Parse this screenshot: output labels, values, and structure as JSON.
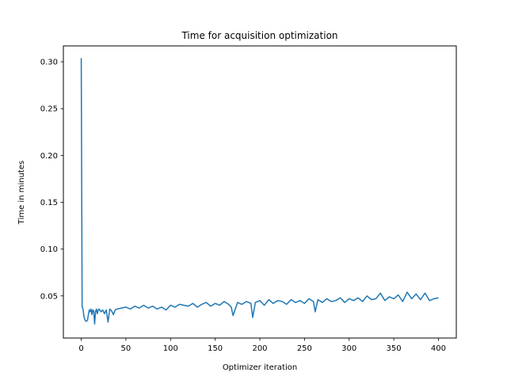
{
  "chart_data": {
    "type": "line",
    "title": "Time for acquisition optimization",
    "xlabel": "Optimizer iteration",
    "ylabel": "Time in minutes",
    "xlim": [
      -20,
      420
    ],
    "ylim": [
      0.005,
      0.317
    ],
    "xticks": [
      0,
      50,
      100,
      150,
      200,
      250,
      300,
      350,
      400
    ],
    "yticks": [
      0.05,
      0.1,
      0.15,
      0.2,
      0.25,
      0.3
    ],
    "ytick_labels": [
      "0.05",
      "0.10",
      "0.15",
      "0.20",
      "0.25",
      "0.30"
    ],
    "grid": false,
    "series": [
      {
        "color": "#1f77b4",
        "x": [
          0,
          1,
          2,
          3,
          4,
          5,
          6,
          7,
          8,
          9,
          10,
          11,
          12,
          13,
          14,
          15,
          16,
          17,
          18,
          19,
          20,
          22,
          24,
          26,
          28,
          30,
          32,
          34,
          36,
          38,
          40,
          45,
          50,
          55,
          60,
          65,
          70,
          75,
          80,
          85,
          90,
          95,
          100,
          105,
          110,
          115,
          120,
          125,
          130,
          135,
          140,
          145,
          150,
          155,
          160,
          165,
          168,
          170,
          175,
          180,
          185,
          190,
          192,
          195,
          200,
          205,
          210,
          215,
          220,
          225,
          230,
          235,
          240,
          245,
          250,
          255,
          260,
          262,
          265,
          270,
          275,
          280,
          285,
          290,
          295,
          300,
          305,
          310,
          315,
          320,
          325,
          330,
          335,
          340,
          345,
          350,
          355,
          360,
          365,
          370,
          375,
          380,
          385,
          390,
          395,
          400
        ],
        "y": [
          0.304,
          0.038,
          0.036,
          0.028,
          0.025,
          0.023,
          0.023,
          0.024,
          0.03,
          0.035,
          0.033,
          0.036,
          0.03,
          0.035,
          0.034,
          0.02,
          0.033,
          0.036,
          0.031,
          0.035,
          0.036,
          0.033,
          0.035,
          0.031,
          0.035,
          0.022,
          0.036,
          0.034,
          0.03,
          0.035,
          0.036,
          0.037,
          0.038,
          0.036,
          0.039,
          0.037,
          0.04,
          0.037,
          0.039,
          0.036,
          0.038,
          0.035,
          0.04,
          0.038,
          0.041,
          0.04,
          0.039,
          0.042,
          0.038,
          0.041,
          0.043,
          0.039,
          0.042,
          0.04,
          0.044,
          0.041,
          0.038,
          0.029,
          0.043,
          0.041,
          0.044,
          0.042,
          0.027,
          0.043,
          0.045,
          0.04,
          0.046,
          0.042,
          0.045,
          0.044,
          0.041,
          0.046,
          0.043,
          0.045,
          0.042,
          0.047,
          0.044,
          0.033,
          0.046,
          0.043,
          0.047,
          0.044,
          0.045,
          0.048,
          0.043,
          0.047,
          0.045,
          0.048,
          0.044,
          0.05,
          0.046,
          0.047,
          0.053,
          0.045,
          0.049,
          0.047,
          0.051,
          0.044,
          0.054,
          0.047,
          0.052,
          0.046,
          0.053,
          0.045,
          0.047,
          0.048
        ]
      }
    ]
  }
}
